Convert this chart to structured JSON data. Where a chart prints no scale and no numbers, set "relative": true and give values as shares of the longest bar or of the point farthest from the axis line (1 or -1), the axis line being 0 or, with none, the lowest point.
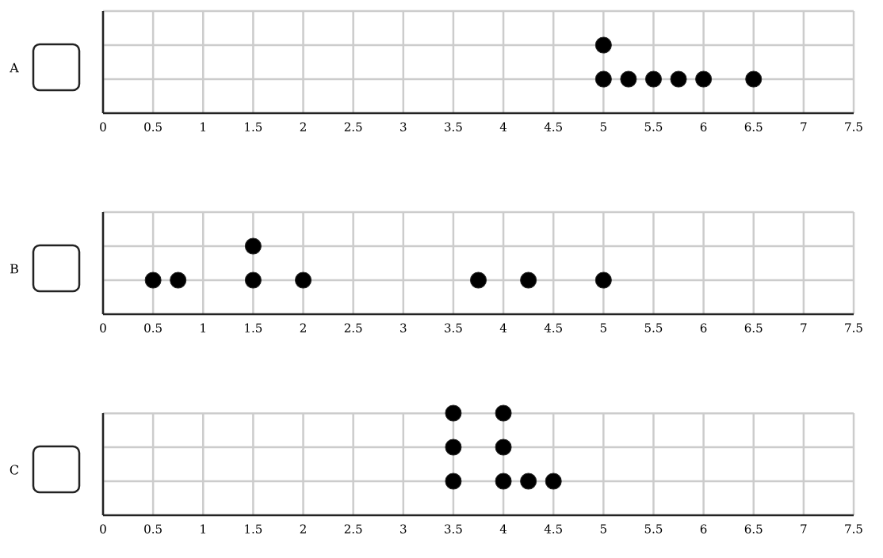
{
  "chart_data": [
    {
      "type": "scatter",
      "ylabel": "A",
      "marker": "circle",
      "grid": true,
      "relative": true,
      "xlim": [
        0,
        7.5
      ],
      "xticks": [
        0,
        0.5,
        1,
        1.5,
        2,
        2.5,
        3,
        3.5,
        4,
        4.5,
        5,
        5.5,
        6,
        6.5,
        7,
        7.5
      ],
      "series": [
        {
          "color": "#000000",
          "x": [
            5,
            5,
            5.25,
            5.5,
            5.75,
            6,
            6.5
          ],
          "values": [
            0.5,
            1,
            0.5,
            0.5,
            0.5,
            0.5,
            0.5
          ]
        }
      ]
    },
    {
      "type": "scatter",
      "ylabel": "B",
      "marker": "circle",
      "grid": true,
      "relative": true,
      "xlim": [
        0,
        7.5
      ],
      "xticks": [
        0,
        0.5,
        1,
        1.5,
        2,
        2.5,
        3,
        3.5,
        4,
        4.5,
        5,
        5.5,
        6,
        6.5,
        7,
        7.5
      ],
      "series": [
        {
          "color": "#000000",
          "x": [
            0.5,
            0.75,
            1.5,
            1.5,
            2,
            3.75,
            4.25,
            5
          ],
          "values": [
            0.5,
            0.5,
            0.5,
            1,
            0.5,
            0.5,
            0.5,
            0.5
          ]
        }
      ]
    },
    {
      "type": "scatter",
      "ylabel": "C",
      "marker": "circle",
      "grid": true,
      "relative": true,
      "xlim": [
        0,
        7.5
      ],
      "xticks": [
        0,
        0.5,
        1,
        1.5,
        2,
        2.5,
        3,
        3.5,
        4,
        4.5,
        5,
        5.5,
        6,
        6.5,
        7,
        7.5
      ],
      "series": [
        {
          "color": "#000000",
          "x": [
            3.5,
            3.5,
            3.5,
            4,
            4,
            4,
            4.25,
            4.5
          ],
          "values": [
            0.333,
            0.667,
            1,
            0.333,
            0.667,
            1,
            0.333,
            0.333
          ]
        }
      ]
    }
  ]
}
